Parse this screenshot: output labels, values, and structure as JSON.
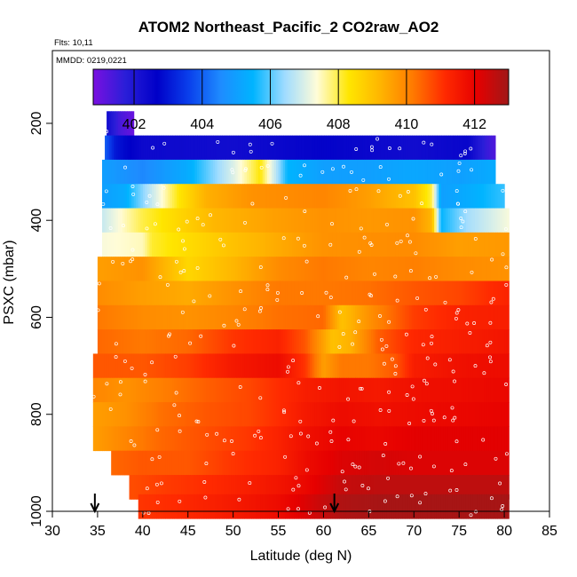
{
  "chart_data": {
    "type": "heatmap",
    "title": "ATOM2 Northeast_Pacific_2 CO2raw_AO2",
    "subtitle_flights": "Flts: 10,11",
    "subtitle_dates": "MMDD: 0219,0221",
    "xlabel": "Latitude (deg N)",
    "ylabel": "PSXC (mbar)",
    "xlim": [
      30,
      85
    ],
    "ylim": [
      1000,
      50
    ],
    "y_reversed": true,
    "x_ticks": [
      "30",
      "35",
      "40",
      "45",
      "50",
      "55",
      "60",
      "65",
      "70",
      "75",
      "80",
      "85"
    ],
    "y_ticks": [
      "200",
      "400",
      "600",
      "800",
      "1000"
    ],
    "colorbar": {
      "range": [
        400.8,
        413.0
      ],
      "ticks": [
        "402",
        "404",
        "406",
        "408",
        "410",
        "412"
      ],
      "colors": [
        "#7a10e0",
        "#2a1ed8",
        "#0000c8",
        "#0a40ec",
        "#1e8cff",
        "#00b4ff",
        "#a0dcff",
        "#fffcd8",
        "#ffe600",
        "#ffb400",
        "#ff7a00",
        "#ff2a00",
        "#e60000",
        "#a01818"
      ]
    },
    "markers": [
      {
        "x": 34.7,
        "label": "down-arrow"
      },
      {
        "x": 61.2,
        "label": "down-arrow"
      }
    ],
    "series": [
      {
        "y": 200,
        "x_range": [
          36.0,
          39.0
        ],
        "value_stops": [
          [
            36.0,
            402.3
          ],
          [
            37.5,
            401.4
          ],
          [
            39.0,
            401.0
          ]
        ]
      },
      {
        "y": 250,
        "x_range": [
          35.8,
          79.0
        ],
        "value_stops": [
          [
            35.8,
            404.0
          ],
          [
            37.0,
            403.0
          ],
          [
            40.0,
            402.4
          ],
          [
            50.0,
            402.3
          ],
          [
            60.0,
            402.6
          ],
          [
            70.0,
            402.3
          ],
          [
            76.0,
            402.5
          ],
          [
            78.0,
            401.6
          ],
          [
            79.0,
            401.3
          ]
        ]
      },
      {
        "y": 300,
        "x_range": [
          35.5,
          79.0
        ],
        "value_stops": [
          [
            35.5,
            405.0
          ],
          [
            40.0,
            404.5
          ],
          [
            45.0,
            405.3
          ],
          [
            50.0,
            407.0
          ],
          [
            53.0,
            408.3
          ],
          [
            56.0,
            405.5
          ],
          [
            60.0,
            405.0
          ],
          [
            65.0,
            405.0
          ],
          [
            70.0,
            405.2
          ],
          [
            75.0,
            405.0
          ],
          [
            79.0,
            405.3
          ]
        ]
      },
      {
        "y": 350,
        "x_range": [
          35.5,
          80.0
        ],
        "value_stops": [
          [
            35.5,
            405.0
          ],
          [
            38.0,
            405.3
          ],
          [
            41.0,
            406.8
          ],
          [
            44.0,
            408.3
          ],
          [
            47.0,
            409.3
          ],
          [
            52.0,
            409.8
          ],
          [
            60.0,
            410.0
          ],
          [
            65.0,
            409.6
          ],
          [
            70.0,
            409.0
          ],
          [
            72.0,
            408.0
          ],
          [
            73.0,
            405.0
          ],
          [
            76.0,
            405.3
          ],
          [
            80.0,
            405.8
          ]
        ]
      },
      {
        "y": 400,
        "x_range": [
          35.5,
          80.5
        ],
        "value_stops": [
          [
            35.5,
            406.8
          ],
          [
            38.0,
            407.5
          ],
          [
            40.0,
            408.0
          ],
          [
            44.0,
            408.6
          ],
          [
            48.0,
            409.2
          ],
          [
            55.0,
            409.6
          ],
          [
            60.0,
            409.8
          ],
          [
            65.0,
            409.7
          ],
          [
            70.0,
            409.8
          ],
          [
            72.0,
            409.2
          ],
          [
            73.0,
            405.5
          ],
          [
            76.0,
            406.5
          ],
          [
            80.5,
            407.3
          ]
        ]
      },
      {
        "y": 450,
        "x_range": [
          35.5,
          80.5
        ],
        "value_stops": [
          [
            35.5,
            407.3
          ],
          [
            40.0,
            407.5
          ],
          [
            41.0,
            408.1
          ],
          [
            50.0,
            409.0
          ],
          [
            60.0,
            409.8
          ],
          [
            70.0,
            409.9
          ],
          [
            75.0,
            409.6
          ],
          [
            80.5,
            409.7
          ]
        ]
      },
      {
        "y": 500,
        "x_range": [
          35.0,
          80.5
        ],
        "value_stops": [
          [
            35.0,
            409.6
          ],
          [
            40.0,
            409.8
          ],
          [
            45.0,
            408.6
          ],
          [
            50.0,
            409.2
          ],
          [
            55.0,
            409.9
          ],
          [
            60.0,
            410.2
          ],
          [
            65.0,
            410.0
          ],
          [
            70.0,
            410.1
          ],
          [
            75.0,
            409.9
          ],
          [
            80.5,
            409.8
          ]
        ]
      },
      {
        "y": 550,
        "x_range": [
          35.0,
          80.5
        ],
        "value_stops": [
          [
            35.0,
            409.9
          ],
          [
            40.0,
            409.6
          ],
          [
            45.0,
            409.4
          ],
          [
            50.0,
            409.8
          ],
          [
            55.0,
            410.2
          ],
          [
            60.0,
            410.2
          ],
          [
            65.0,
            410.3
          ],
          [
            70.0,
            410.6
          ],
          [
            75.0,
            410.8
          ],
          [
            80.5,
            411.3
          ]
        ]
      },
      {
        "y": 600,
        "x_range": [
          35.0,
          80.5
        ],
        "value_stops": [
          [
            35.0,
            410.2
          ],
          [
            40.0,
            409.9
          ],
          [
            45.0,
            409.8
          ],
          [
            50.0,
            410.0
          ],
          [
            55.0,
            410.3
          ],
          [
            60.0,
            410.4
          ],
          [
            62.0,
            409.0
          ],
          [
            65.0,
            409.8
          ],
          [
            70.0,
            410.9
          ],
          [
            75.0,
            411.3
          ],
          [
            80.5,
            411.4
          ]
        ]
      },
      {
        "y": 650,
        "x_range": [
          35.0,
          80.5
        ],
        "value_stops": [
          [
            35.0,
            410.4
          ],
          [
            40.0,
            410.2
          ],
          [
            45.0,
            410.4
          ],
          [
            50.0,
            411.0
          ],
          [
            55.0,
            411.3
          ],
          [
            58.0,
            410.6
          ],
          [
            61.0,
            409.0
          ],
          [
            63.0,
            409.3
          ],
          [
            66.0,
            410.5
          ],
          [
            70.0,
            411.2
          ],
          [
            75.0,
            411.4
          ],
          [
            80.5,
            411.6
          ]
        ]
      },
      {
        "y": 700,
        "x_range": [
          34.5,
          80.5
        ],
        "value_stops": [
          [
            34.5,
            410.6
          ],
          [
            40.0,
            410.6
          ],
          [
            45.0,
            410.9
          ],
          [
            50.0,
            411.5
          ],
          [
            55.0,
            411.8
          ],
          [
            58.0,
            411.0
          ],
          [
            60.0,
            409.6
          ],
          [
            62.0,
            410.2
          ],
          [
            65.0,
            410.2
          ],
          [
            68.0,
            410.6
          ],
          [
            70.0,
            411.4
          ],
          [
            75.0,
            411.7
          ],
          [
            80.5,
            411.8
          ]
        ]
      },
      {
        "y": 750,
        "x_range": [
          34.5,
          80.5
        ],
        "value_stops": [
          [
            34.5,
            410.0
          ],
          [
            38.0,
            409.8
          ],
          [
            42.0,
            410.1
          ],
          [
            47.0,
            410.5
          ],
          [
            52.0,
            410.8
          ],
          [
            55.0,
            411.1
          ],
          [
            58.0,
            411.4
          ],
          [
            62.0,
            411.6
          ],
          [
            66.0,
            411.5
          ],
          [
            70.0,
            411.7
          ],
          [
            75.0,
            411.8
          ],
          [
            80.5,
            411.9
          ]
        ]
      },
      {
        "y": 800,
        "x_range": [
          34.5,
          80.5
        ],
        "value_stops": [
          [
            34.5,
            409.6
          ],
          [
            38.0,
            409.8
          ],
          [
            42.0,
            410.3
          ],
          [
            47.0,
            410.6
          ],
          [
            52.0,
            410.8
          ],
          [
            55.0,
            411.1
          ],
          [
            58.0,
            411.5
          ],
          [
            62.0,
            411.8
          ],
          [
            66.0,
            411.7
          ],
          [
            70.0,
            411.8
          ],
          [
            75.0,
            411.9
          ],
          [
            80.5,
            412.0
          ]
        ]
      },
      {
        "y": 850,
        "x_range": [
          34.5,
          80.5
        ],
        "value_stops": [
          [
            34.5,
            409.6
          ],
          [
            38.0,
            410.0
          ],
          [
            42.0,
            410.4
          ],
          [
            47.0,
            410.7
          ],
          [
            52.0,
            411.0
          ],
          [
            55.0,
            411.3
          ],
          [
            58.0,
            411.7
          ],
          [
            62.0,
            412.0
          ],
          [
            66.0,
            411.9
          ],
          [
            70.0,
            412.1
          ],
          [
            75.0,
            412.1
          ],
          [
            80.5,
            412.1
          ]
        ]
      },
      {
        "y": 900,
        "x_range": [
          36.5,
          80.5
        ],
        "value_stops": [
          [
            36.5,
            410.4
          ],
          [
            40.0,
            410.6
          ],
          [
            45.0,
            410.6
          ],
          [
            50.0,
            411.0
          ],
          [
            55.0,
            411.3
          ],
          [
            58.0,
            411.8
          ],
          [
            62.0,
            412.2
          ],
          [
            66.0,
            412.3
          ],
          [
            70.0,
            412.2
          ],
          [
            75.0,
            412.2
          ],
          [
            80.5,
            412.2
          ]
        ]
      },
      {
        "y": 950,
        "x_range": [
          38.5,
          80.5
        ],
        "value_stops": [
          [
            38.5,
            410.7
          ],
          [
            42.0,
            410.9
          ],
          [
            47.0,
            411.1
          ],
          [
            52.0,
            411.4
          ],
          [
            55.0,
            411.6
          ],
          [
            58.0,
            411.9
          ],
          [
            62.0,
            412.5
          ],
          [
            66.0,
            412.6
          ],
          [
            70.0,
            412.6
          ],
          [
            75.0,
            412.6
          ],
          [
            80.5,
            412.6
          ]
        ]
      },
      {
        "y": 990,
        "x_range": [
          39.5,
          80.5
        ],
        "value_stops": [
          [
            39.5,
            411.0
          ],
          [
            43.0,
            411.1
          ],
          [
            47.0,
            411.3
          ],
          [
            52.0,
            411.6
          ],
          [
            55.0,
            411.8
          ],
          [
            58.0,
            412.2
          ],
          [
            62.0,
            412.8
          ],
          [
            66.0,
            412.9
          ],
          [
            70.0,
            412.9
          ],
          [
            75.0,
            412.9
          ],
          [
            80.5,
            412.9
          ]
        ]
      }
    ]
  }
}
